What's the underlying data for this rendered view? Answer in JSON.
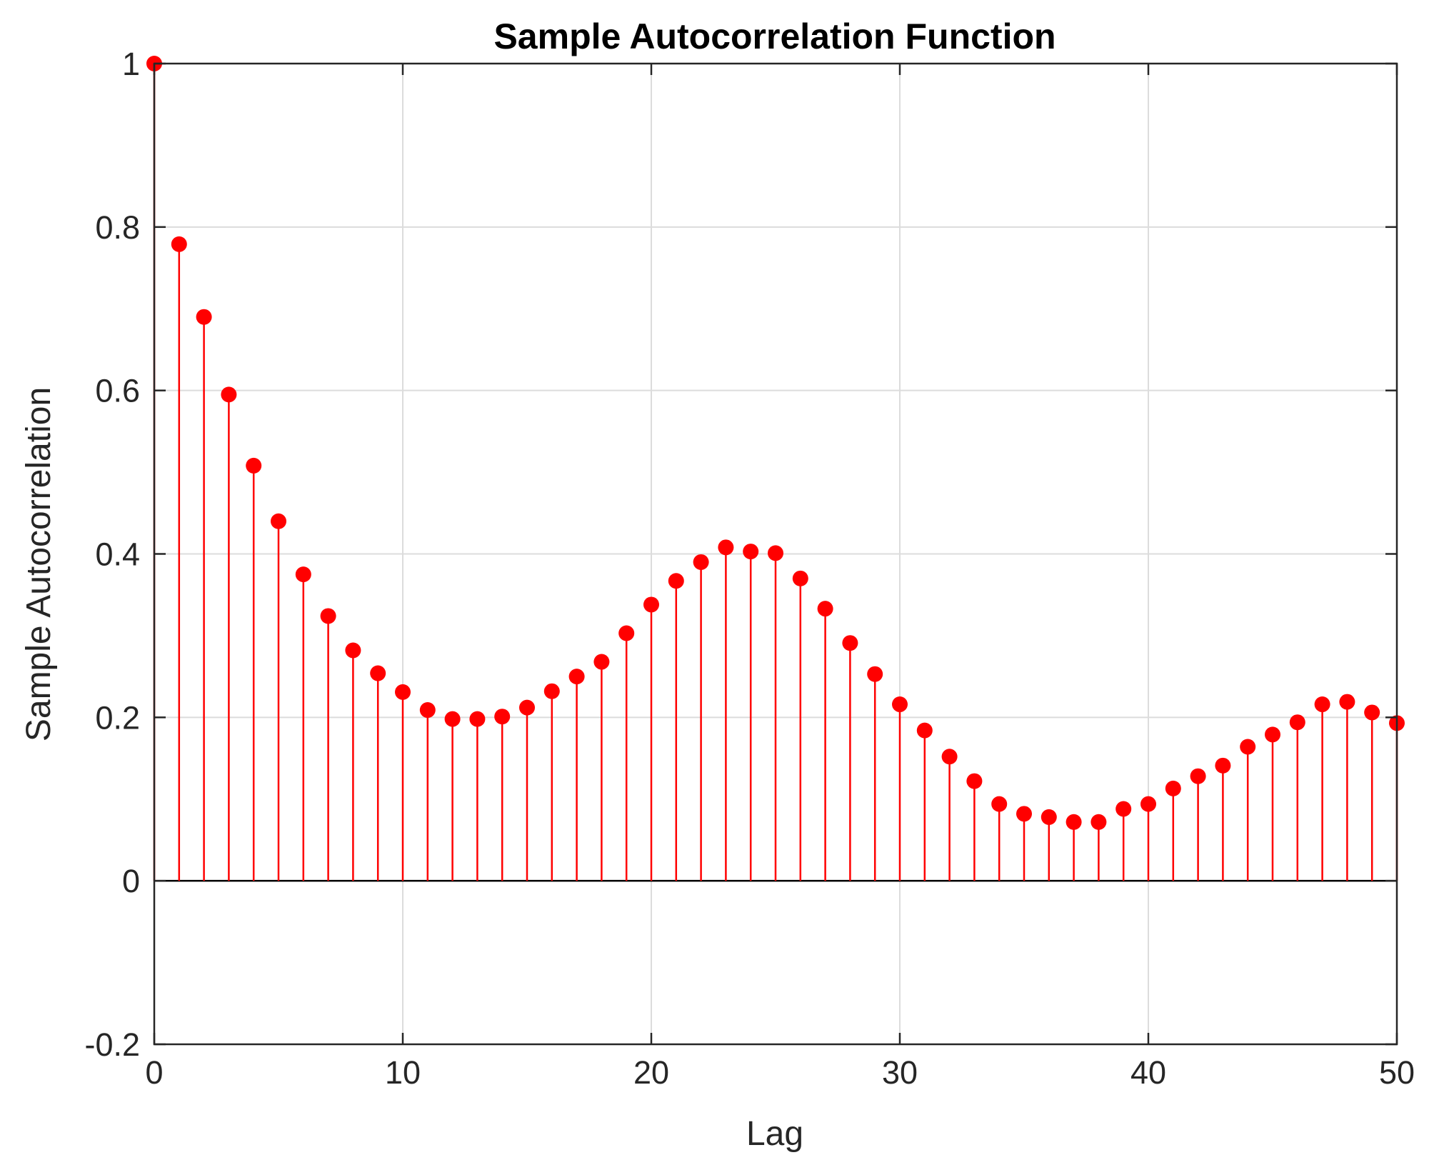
{
  "chart_data": {
    "type": "stem",
    "title": "Sample Autocorrelation Function",
    "xlabel": "Lag",
    "ylabel": "Sample Autocorrelation",
    "xlim": [
      0,
      50
    ],
    "ylim": [
      -0.2,
      1
    ],
    "xticks": [
      0,
      10,
      20,
      30,
      40,
      50
    ],
    "xtick_labels": [
      "0",
      "10",
      "20",
      "30",
      "40",
      "50"
    ],
    "yticks": [
      -0.2,
      0,
      0.2,
      0.4,
      0.6,
      0.8,
      1
    ],
    "ytick_labels": [
      "-0.2",
      "0",
      "0.2",
      "0.4",
      "0.6",
      "0.8",
      "1"
    ],
    "grid": true,
    "color": "#ff0000",
    "x": [
      0,
      1,
      2,
      3,
      4,
      5,
      6,
      7,
      8,
      9,
      10,
      11,
      12,
      13,
      14,
      15,
      16,
      17,
      18,
      19,
      20,
      21,
      22,
      23,
      24,
      25,
      26,
      27,
      28,
      29,
      30,
      31,
      32,
      33,
      34,
      35,
      36,
      37,
      38,
      39,
      40,
      41,
      42,
      43,
      44,
      45,
      46,
      47,
      48,
      49,
      50
    ],
    "values": [
      1.0,
      0.779,
      0.69,
      0.595,
      0.508,
      0.44,
      0.375,
      0.324,
      0.282,
      0.254,
      0.231,
      0.209,
      0.198,
      0.198,
      0.201,
      0.212,
      0.232,
      0.25,
      0.268,
      0.303,
      0.338,
      0.367,
      0.39,
      0.408,
      0.403,
      0.401,
      0.37,
      0.333,
      0.291,
      0.253,
      0.216,
      0.184,
      0.152,
      0.122,
      0.094,
      0.082,
      0.078,
      0.072,
      0.072,
      0.088,
      0.094,
      0.113,
      0.128,
      0.141,
      0.164,
      0.179,
      0.194,
      0.216,
      0.219,
      0.206,
      0.193
    ]
  }
}
